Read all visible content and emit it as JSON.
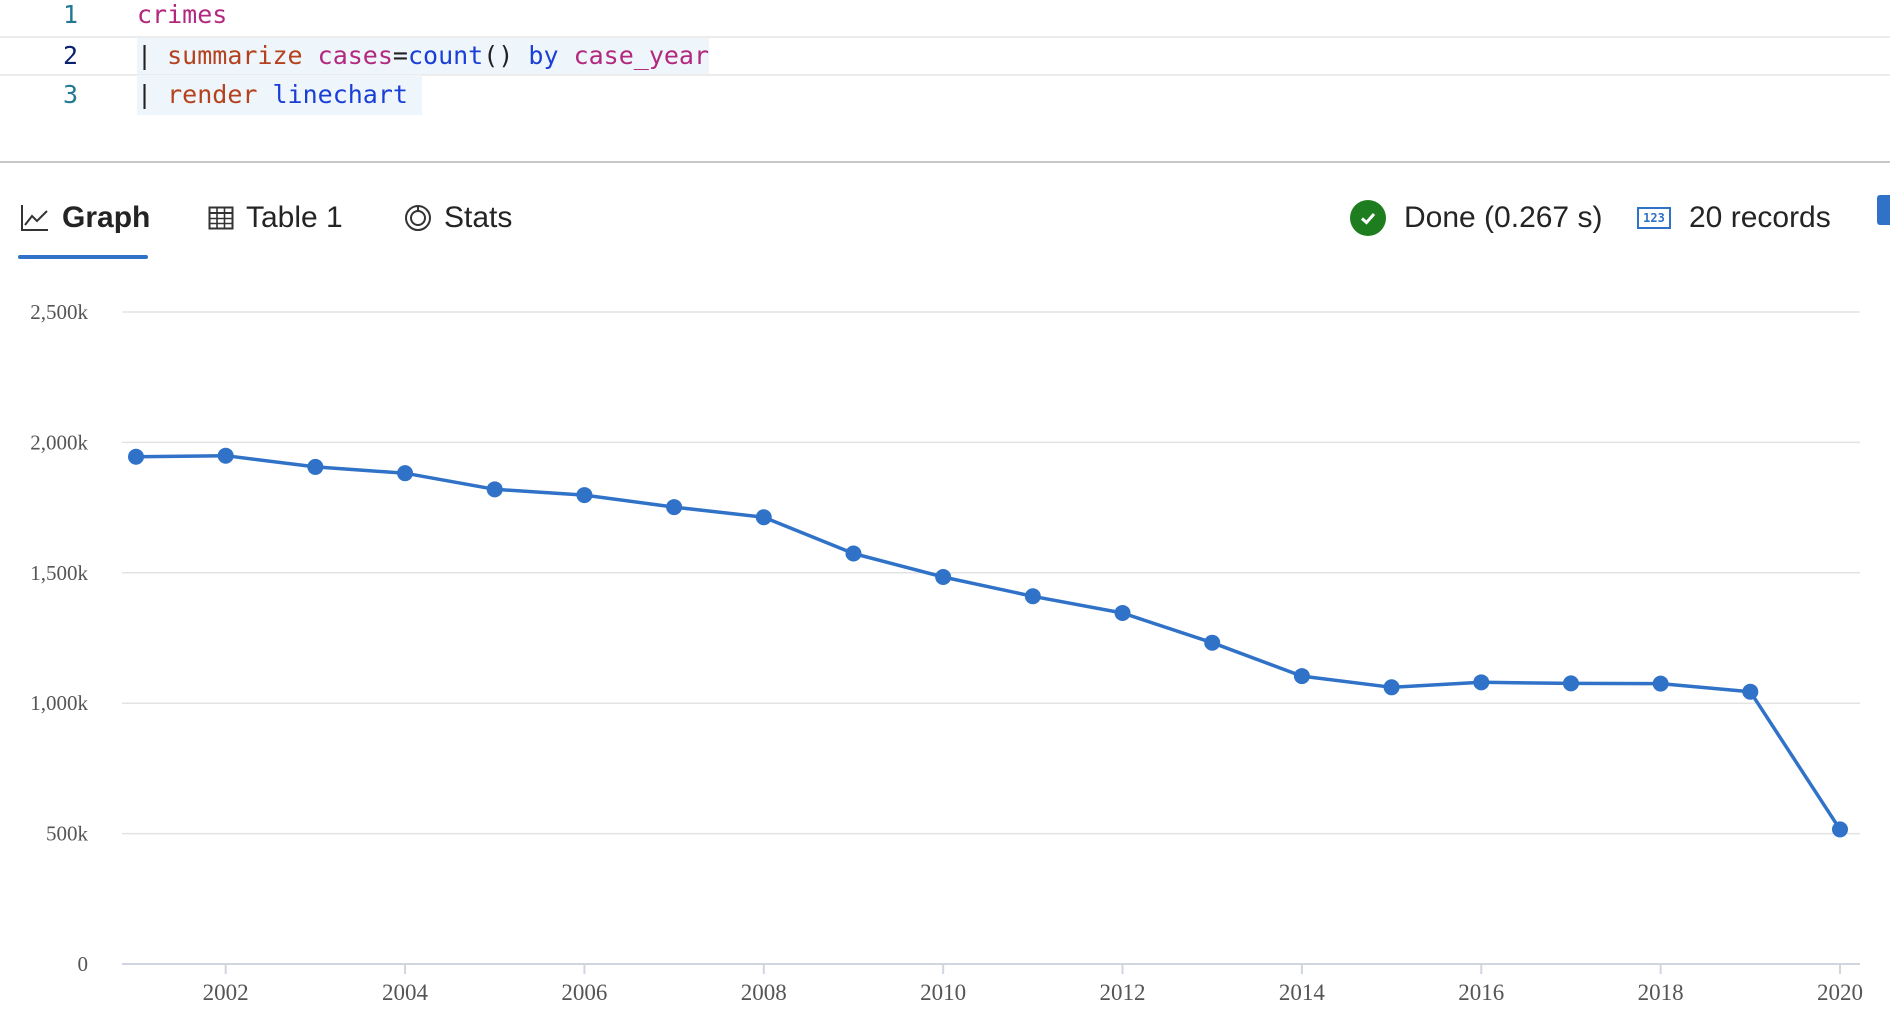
{
  "editor": {
    "lines": [
      {
        "number": "1",
        "tokens": [
          "crimes"
        ]
      },
      {
        "number": "2",
        "tokens": [
          "| ",
          "summarize",
          " ",
          "cases",
          "=",
          "count",
          "()",
          " ",
          "by",
          " ",
          "case_year"
        ]
      },
      {
        "number": "3",
        "tokens": [
          "| ",
          "render",
          " ",
          "linechart"
        ]
      }
    ]
  },
  "tabs": [
    {
      "label": "Graph",
      "icon": "line-chart-icon",
      "active": true
    },
    {
      "label": "Table 1",
      "icon": "table-icon",
      "active": false
    },
    {
      "label": "Stats",
      "icon": "stats-icon",
      "active": false
    }
  ],
  "status": {
    "done_label": "Done (0.267 s)",
    "records_label": "20 records",
    "records_icon_text": "123",
    "ok_color": "#1e7d1e"
  },
  "chart_data": {
    "type": "line",
    "x": [
      2001,
      2002,
      2003,
      2004,
      2005,
      2006,
      2007,
      2008,
      2009,
      2010,
      2011,
      2012,
      2013,
      2014,
      2015,
      2016,
      2017,
      2018,
      2019,
      2020
    ],
    "series": [
      {
        "values": [
          1945000,
          1949000,
          1906000,
          1882000,
          1820000,
          1798000,
          1752000,
          1713000,
          1574000,
          1484000,
          1410000,
          1346000,
          1232000,
          1104000,
          1061000,
          1080000,
          1076000,
          1075000,
          1044000,
          516000
        ],
        "color": "#2f72c8"
      }
    ],
    "x_ticks": [
      "2002",
      "2004",
      "2006",
      "2008",
      "2010",
      "2012",
      "2014",
      "2016",
      "2018",
      "2020"
    ],
    "y_ticks": [
      "0",
      "500k",
      "1,000k",
      "1,500k",
      "2,000k",
      "2,500k"
    ],
    "y_tick_values": [
      0,
      500000,
      1000000,
      1500000,
      2000000,
      2500000
    ],
    "ylim": [
      0,
      2500000
    ],
    "xlim": [
      2001,
      2020
    ],
    "grid": true,
    "legend": "none"
  }
}
